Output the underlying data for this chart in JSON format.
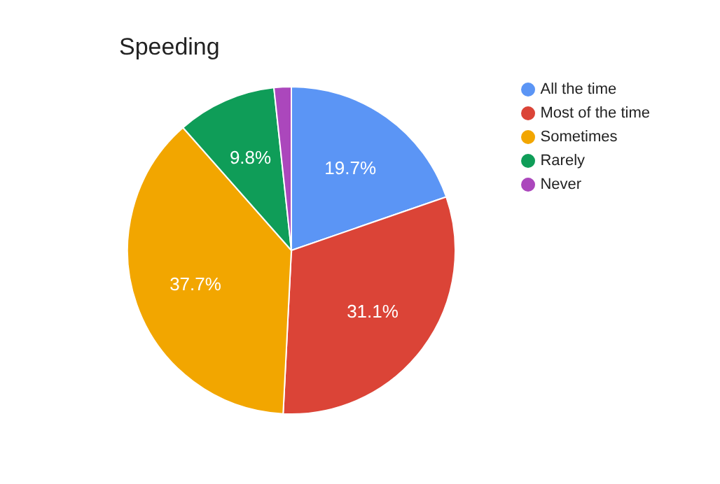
{
  "chart_data": {
    "type": "pie",
    "title": "Speeding",
    "categories": [
      "All the time",
      "Most of the time",
      "Sometimes",
      "Rarely",
      "Never"
    ],
    "values": [
      19.7,
      31.1,
      37.7,
      9.8,
      1.7
    ],
    "colors": [
      "#5b95f5",
      "#db4437",
      "#f2a600",
      "#0f9d58",
      "#ab47bc"
    ],
    "value_labels": [
      "19.7%",
      "31.1%",
      "37.7%",
      "9.8%",
      null
    ],
    "legend": "right"
  }
}
